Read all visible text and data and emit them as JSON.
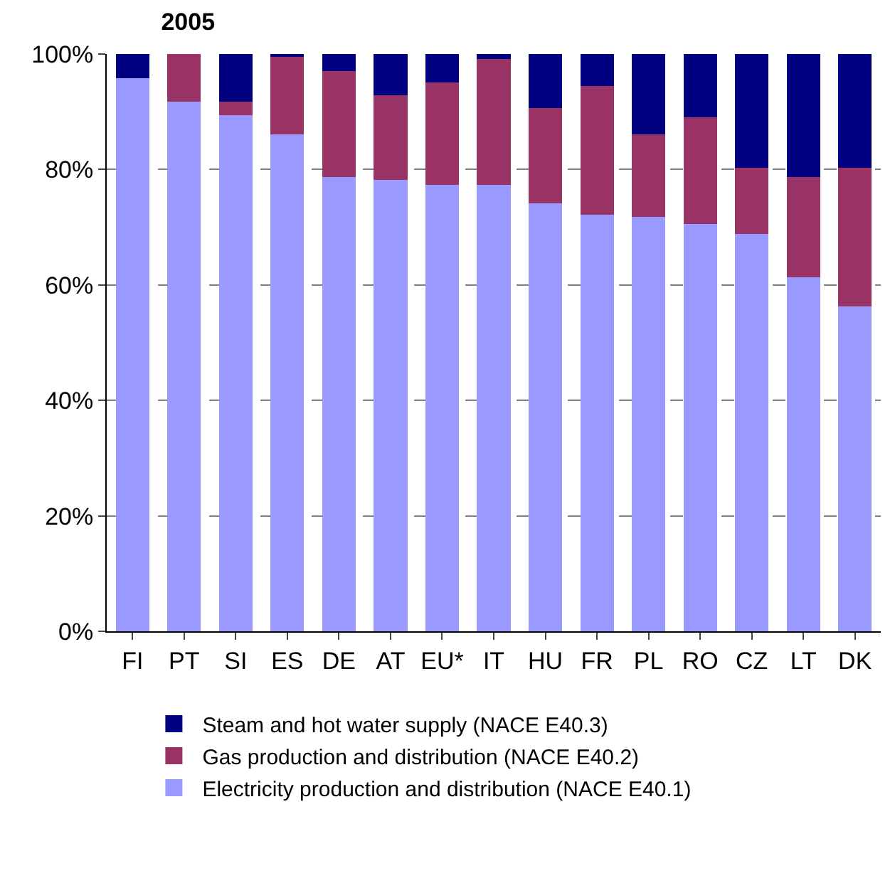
{
  "chart_data": {
    "type": "bar",
    "title": "2005",
    "stacked": true,
    "categories": [
      "FI",
      "PT",
      "SI",
      "ES",
      "DE",
      "AT",
      "EU*",
      "IT",
      "HU",
      "FR",
      "PL",
      "RO",
      "CZ",
      "LT",
      "DK"
    ],
    "series": [
      {
        "name": "Electricity production and distribution (NACE E40.1)",
        "color": "#9999ff",
        "values": [
          95.8,
          91.7,
          89.4,
          86.1,
          78.7,
          78.2,
          77.3,
          77.3,
          74.1,
          72.2,
          71.8,
          70.6,
          68.8,
          61.3,
          56.3
        ]
      },
      {
        "name": "Gas production and distribution (NACE E40.2)",
        "color": "#993366",
        "values": [
          0,
          8.3,
          2.3,
          13.4,
          18.3,
          14.6,
          17.8,
          21.8,
          16.6,
          22.2,
          14.3,
          18.5,
          11.5,
          17.4,
          24.0
        ]
      },
      {
        "name": "Steam and hot water supply (NACE E40.3)",
        "color": "#000080",
        "values": [
          4.2,
          0,
          8.3,
          0.5,
          3.0,
          7.2,
          4.9,
          0.9,
          9.3,
          5.6,
          13.9,
          10.9,
          19.7,
          21.3,
          19.7
        ]
      }
    ],
    "ylim": [
      0,
      100
    ],
    "yticks": [
      {
        "value": 0,
        "label": "0%"
      },
      {
        "value": 20,
        "label": "20%"
      },
      {
        "value": 40,
        "label": "40%"
      },
      {
        "value": 60,
        "label": "60%"
      },
      {
        "value": 80,
        "label": "80%"
      },
      {
        "value": 100,
        "label": "100%"
      }
    ],
    "grid": "y",
    "legend": "bottom"
  }
}
